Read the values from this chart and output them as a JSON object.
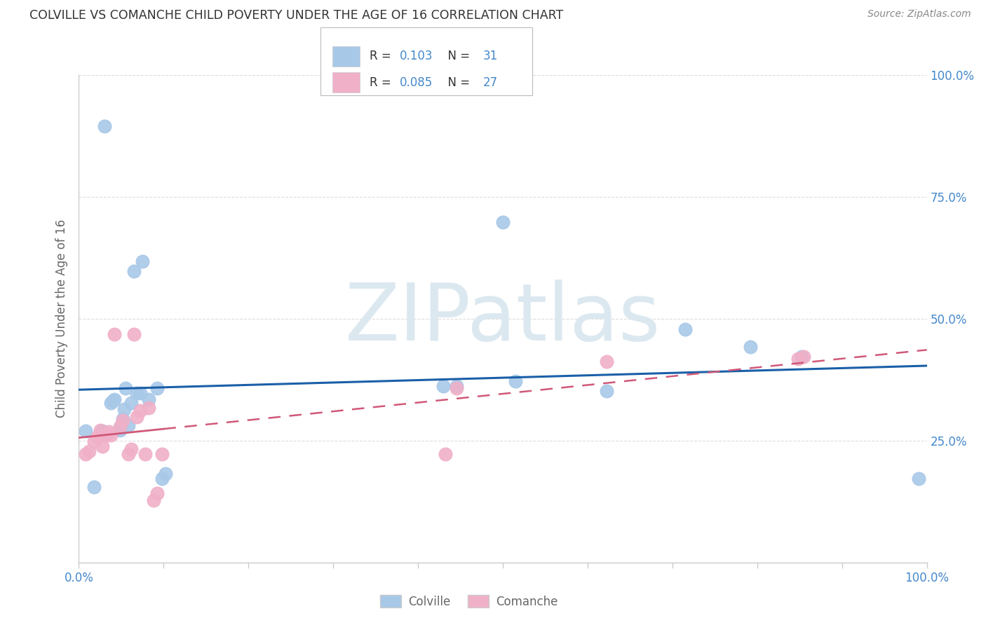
{
  "title": "COLVILLE VS COMANCHE CHILD POVERTY UNDER THE AGE OF 16 CORRELATION CHART",
  "source": "Source: ZipAtlas.com",
  "ylabel": "Child Poverty Under the Age of 16",
  "colville_R": "0.103",
  "colville_N": "31",
  "comanche_R": "0.085",
  "comanche_N": "27",
  "colville_color": "#a8c8e8",
  "comanche_color": "#f0b0c8",
  "colville_line_color": "#1a5fa8",
  "comanche_line_color": "#d05878",
  "colville_x": [
    0.008,
    0.018,
    0.028,
    0.03,
    0.038,
    0.04,
    0.042,
    0.048,
    0.05,
    0.052,
    0.053,
    0.055,
    0.058,
    0.062,
    0.065,
    0.068,
    0.072,
    0.075,
    0.082,
    0.092,
    0.098,
    0.102,
    0.43,
    0.445,
    0.5,
    0.515,
    0.622,
    0.715,
    0.792,
    0.852,
    0.99
  ],
  "colville_y": [
    0.27,
    0.155,
    0.27,
    0.895,
    0.328,
    0.332,
    0.335,
    0.272,
    0.282,
    0.295,
    0.315,
    0.358,
    0.282,
    0.328,
    0.598,
    0.348,
    0.348,
    0.618,
    0.335,
    0.358,
    0.172,
    0.182,
    0.362,
    0.362,
    0.698,
    0.372,
    0.352,
    0.478,
    0.442,
    0.422,
    0.172
  ],
  "comanche_x": [
    0.008,
    0.012,
    0.018,
    0.022,
    0.025,
    0.028,
    0.032,
    0.035,
    0.038,
    0.042,
    0.048,
    0.052,
    0.058,
    0.062,
    0.065,
    0.068,
    0.072,
    0.078,
    0.082,
    0.088,
    0.092,
    0.098,
    0.432,
    0.445,
    0.622,
    0.848,
    0.855
  ],
  "comanche_y": [
    0.222,
    0.228,
    0.248,
    0.258,
    0.272,
    0.238,
    0.262,
    0.268,
    0.262,
    0.468,
    0.278,
    0.292,
    0.222,
    0.232,
    0.468,
    0.298,
    0.312,
    0.222,
    0.318,
    0.128,
    0.142,
    0.222,
    0.222,
    0.358,
    0.412,
    0.418,
    0.422
  ],
  "xlim": [
    0.0,
    1.0
  ],
  "ylim": [
    0.0,
    1.0
  ],
  "xtick_positions": [
    0.0,
    0.1,
    0.2,
    0.3,
    0.4,
    0.5,
    0.6,
    0.7,
    0.8,
    0.9,
    1.0
  ],
  "ytick_positions": [
    0.0,
    0.25,
    0.5,
    0.75,
    1.0
  ],
  "ytick_labels_right": [
    "",
    "25.0%",
    "50.0%",
    "75.0%",
    "100.0%"
  ],
  "axis_label_color": "#4488cc",
  "grid_color": "#dddddd",
  "title_color": "#333333",
  "source_color": "#888888",
  "ylabel_color": "#666666",
  "background_color": "#ffffff",
  "watermark_color": "#dce8f0"
}
